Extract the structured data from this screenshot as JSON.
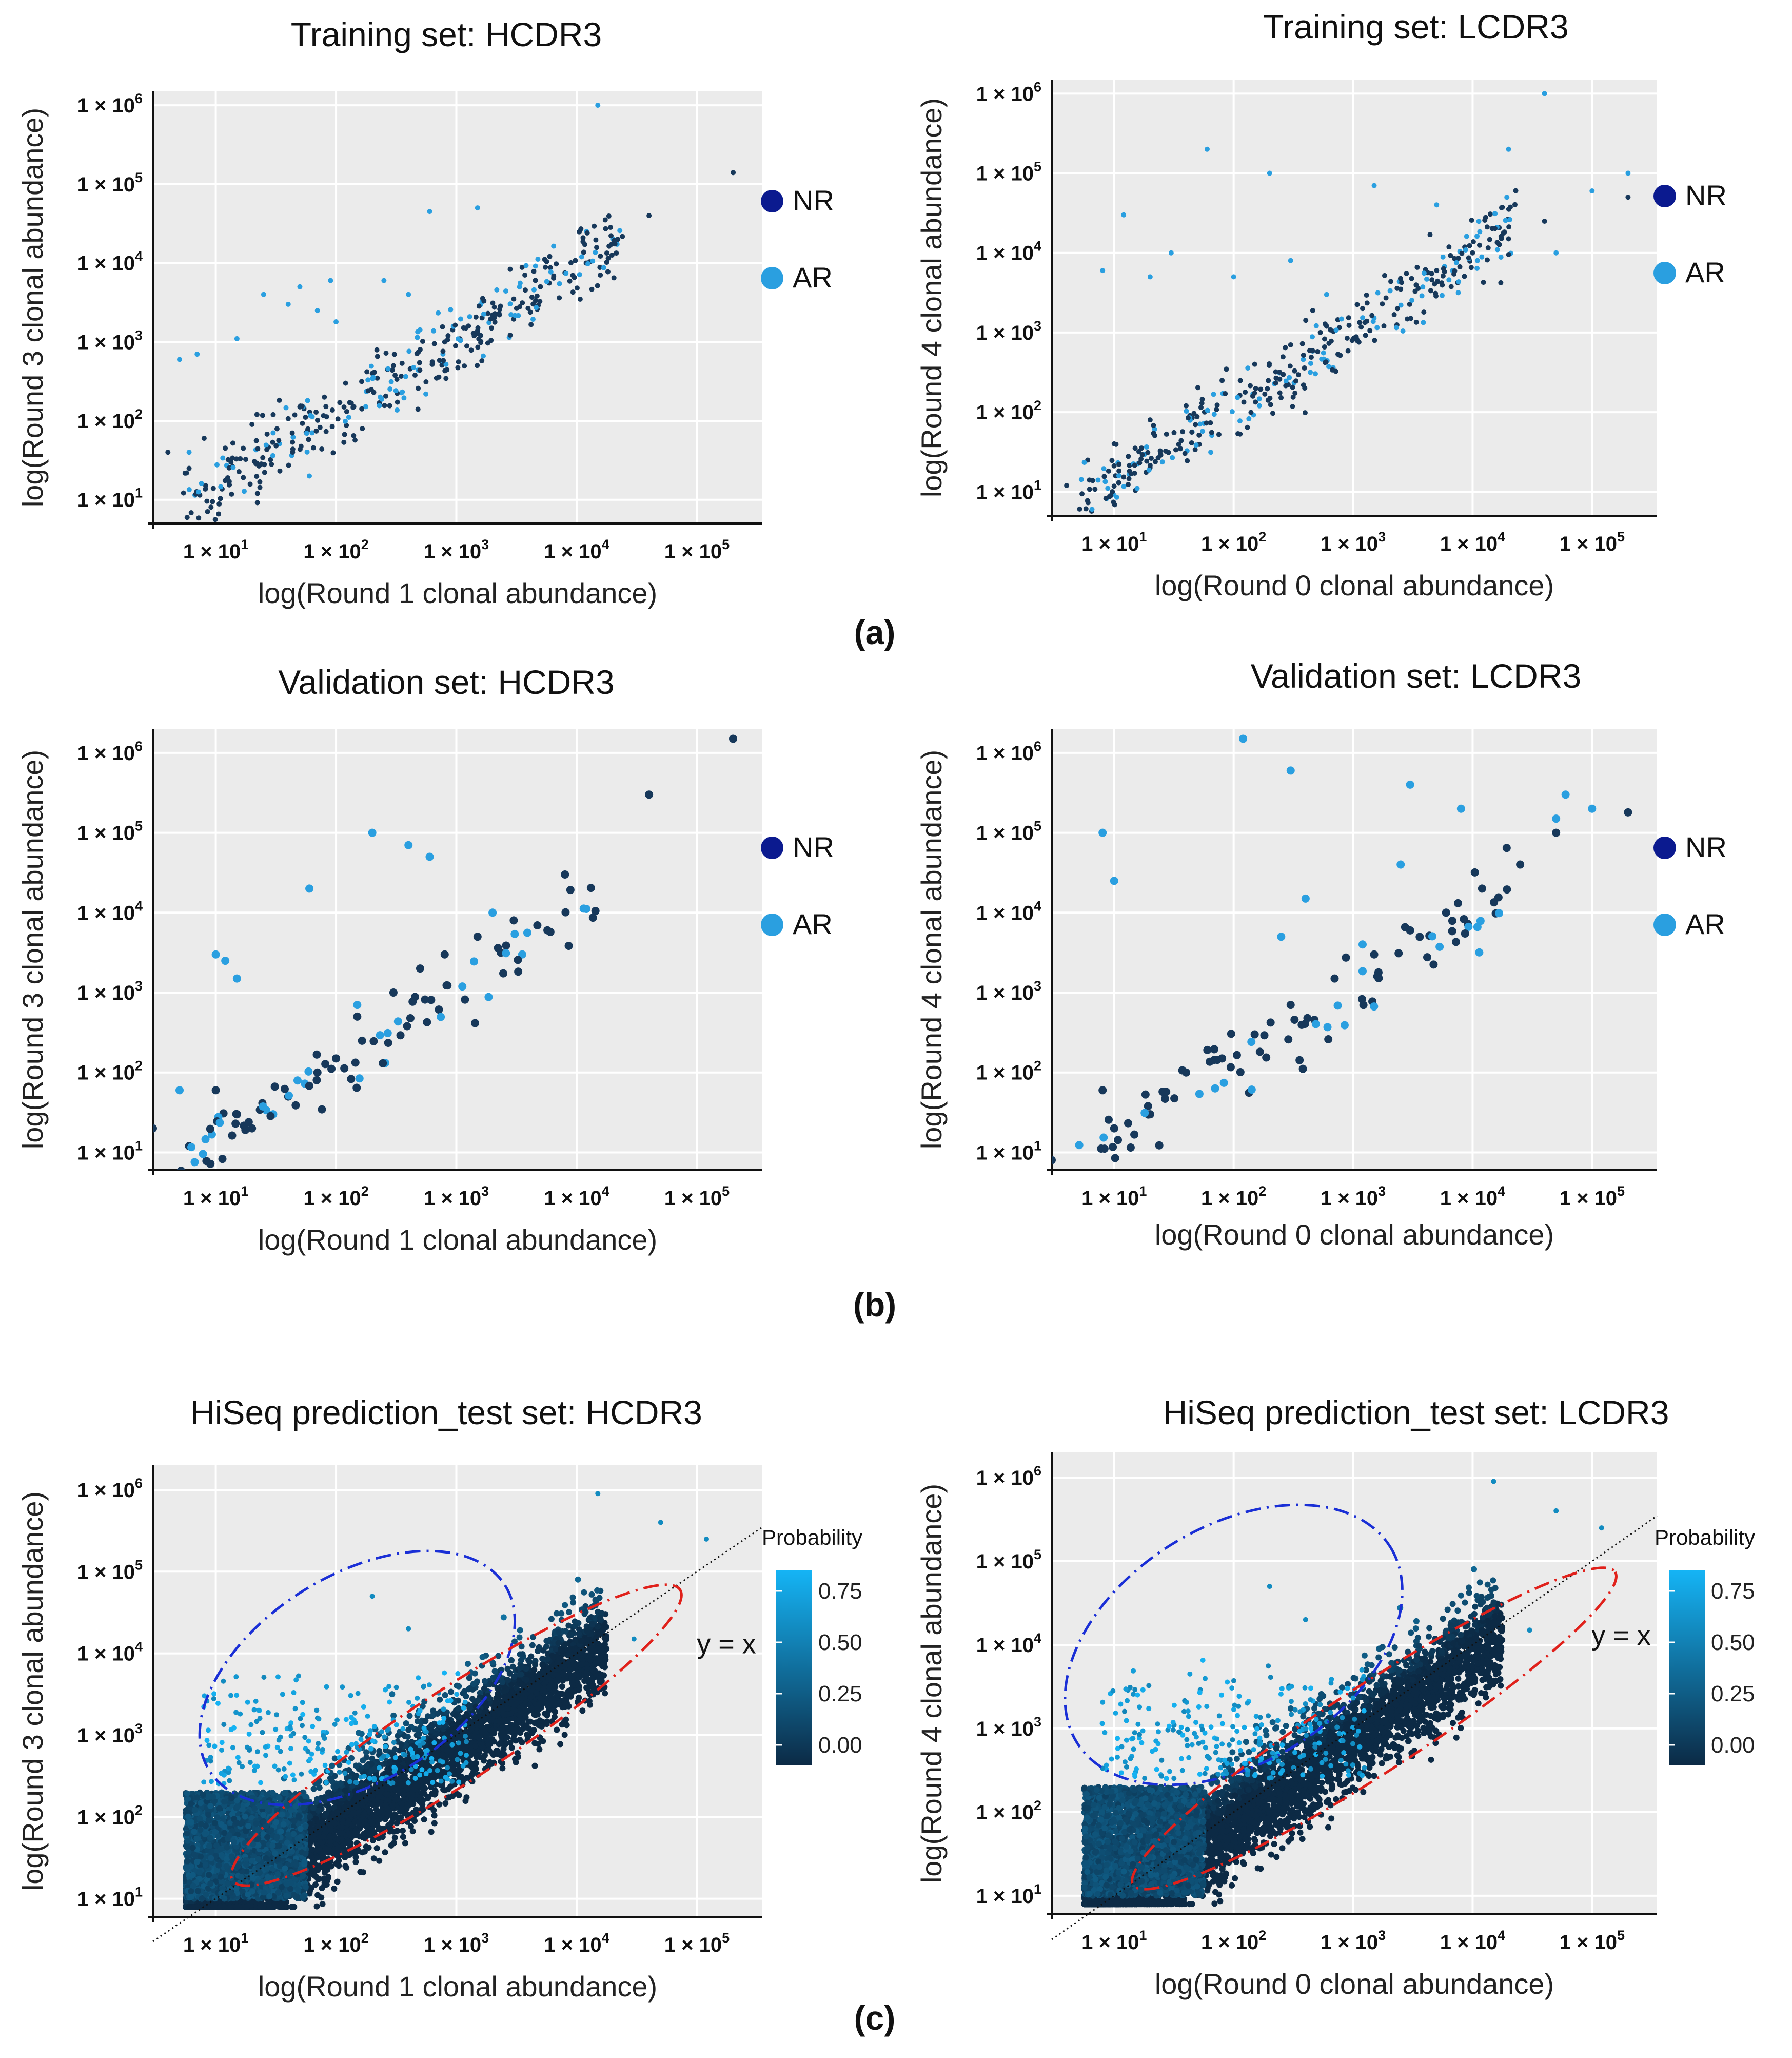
{
  "panel_labels": [
    "(a)",
    "(b)",
    "(c)"
  ],
  "legend_entries": [
    {
      "label": "NR",
      "color": "#0b1a8f"
    },
    {
      "label": "AR",
      "color": "#2a9fe0"
    }
  ],
  "colorbar": {
    "title": "Probability",
    "ticks": [
      "0.75",
      "0.50",
      "0.25",
      "0.00"
    ],
    "tick_values": [
      0.75,
      0.5,
      0.25,
      0.0
    ],
    "color_low": "#0c2a45",
    "color_high": "#15b4f5"
  },
  "identity_label": "y = x",
  "colors": {
    "panel_bg": "#ebebeb",
    "grid": "#ffffff",
    "nr_point": "#17385a",
    "ar_point": "#2a9fe0",
    "ellipse_blue": "#1a2fd6",
    "ellipse_red": "#e0211b"
  },
  "chart_data": [
    {
      "type": "scatter",
      "title": "Training set: HCDR3",
      "xlabel": "log(Round 1 clonal abundance)",
      "ylabel": "log(Round 3 clonal abundance)",
      "x_scale": "log10",
      "y_scale": "log10",
      "xlim": [
        3,
        350000
      ],
      "ylim": [
        5,
        1500000
      ],
      "x_ticks": [
        "1 × 10^1",
        "1 × 10^2",
        "1 × 10^3",
        "1 × 10^4",
        "1 × 10^5"
      ],
      "x_tick_values": [
        10,
        100,
        1000,
        10000,
        100000
      ],
      "y_ticks": [
        "1 × 10^1",
        "1 × 10^2",
        "1 × 10^3",
        "1 × 10^4",
        "1 × 10^5",
        "1 × 10^6"
      ],
      "y_tick_values": [
        10,
        100,
        1000,
        10000,
        100000,
        1000000
      ],
      "legend": "right",
      "grid": true,
      "series": [
        {
          "name": "NR",
          "trend": "along y = x",
          "points": [
            [
              4,
              40
            ],
            [
              6,
              25
            ],
            [
              8,
              60
            ],
            [
              12,
              45
            ],
            [
              20,
              90
            ],
            [
              30,
              120
            ],
            [
              50,
              150
            ],
            [
              80,
              200
            ],
            [
              120,
              300
            ],
            [
              200,
              400
            ],
            [
              300,
              500
            ],
            [
              500,
              800
            ],
            [
              800,
              1000
            ],
            [
              1200,
              1500
            ],
            [
              2000,
              2200
            ],
            [
              3000,
              3500
            ],
            [
              5000,
              5000
            ],
            [
              8000,
              7500
            ],
            [
              12000,
              10000
            ],
            [
              20000,
              20000
            ],
            [
              40000,
              40000
            ],
            [
              200000,
              140000
            ]
          ]
        },
        {
          "name": "AR",
          "trend": "mostly above diagonal",
          "points": [
            [
              5,
              600
            ],
            [
              7,
              700
            ],
            [
              15,
              1100
            ],
            [
              25,
              4000
            ],
            [
              40,
              3000
            ],
            [
              50,
              5000
            ],
            [
              70,
              2500
            ],
            [
              90,
              6000
            ],
            [
              100,
              1800
            ],
            [
              250,
              6000
            ],
            [
              400,
              4000
            ],
            [
              600,
              45000
            ],
            [
              1500,
              50000
            ],
            [
              6,
              40
            ],
            [
              60,
              20
            ],
            [
              15000,
              1000000
            ]
          ]
        }
      ]
    },
    {
      "type": "scatter",
      "title": "Training set: LCDR3",
      "xlabel": "log(Round 0 clonal abundance)",
      "ylabel": "log(Round 4 clonal abundance)",
      "x_scale": "log10",
      "y_scale": "log10",
      "xlim": [
        3,
        350000
      ],
      "ylim": [
        5,
        1500000
      ],
      "x_ticks": [
        "1 × 10^1",
        "1 × 10^2",
        "1 × 10^3",
        "1 × 10^4",
        "1 × 10^5"
      ],
      "x_tick_values": [
        10,
        100,
        1000,
        10000,
        100000
      ],
      "y_ticks": [
        "1 × 10^1",
        "1 × 10^2",
        "1 × 10^3",
        "1 × 10^4",
        "1 × 10^5",
        "1 × 10^6"
      ],
      "y_tick_values": [
        10,
        100,
        1000,
        10000,
        100000,
        1000000
      ],
      "legend": "right",
      "grid": true,
      "series": [
        {
          "name": "NR",
          "trend": "along y = x",
          "points": [
            [
              4,
              12
            ],
            [
              6,
              25
            ],
            [
              10,
              40
            ],
            [
              20,
              80
            ],
            [
              40,
              120
            ],
            [
              80,
              250
            ],
            [
              150,
              400
            ],
            [
              300,
              700
            ],
            [
              600,
              1200
            ],
            [
              1200,
              2000
            ],
            [
              2500,
              3500
            ],
            [
              5000,
              6000
            ],
            [
              10000,
              10000
            ],
            [
              20000,
              15000
            ],
            [
              40000,
              25000
            ],
            [
              200000,
              50000
            ]
          ]
        },
        {
          "name": "AR",
          "trend": "mostly above diagonal",
          "points": [
            [
              8,
              6000
            ],
            [
              12,
              30000
            ],
            [
              20,
              5000
            ],
            [
              30,
              10000
            ],
            [
              60,
              200000
            ],
            [
              100,
              5000
            ],
            [
              200,
              100000
            ],
            [
              300,
              8000
            ],
            [
              600,
              3000
            ],
            [
              1500,
              70000
            ],
            [
              5000,
              40000
            ],
            [
              20000,
              200000
            ],
            [
              40000,
              1000000
            ],
            [
              50000,
              10000
            ],
            [
              200000,
              100000
            ],
            [
              100000,
              60000
            ]
          ]
        }
      ]
    },
    {
      "type": "scatter",
      "title": "Validation set: HCDR3",
      "xlabel": "log(Round 1 clonal abundance)",
      "ylabel": "log(Round 3 clonal abundance)",
      "x_scale": "log10",
      "y_scale": "log10",
      "xlim": [
        3,
        350000
      ],
      "ylim": [
        6,
        2000000
      ],
      "x_ticks": [
        "1 × 10^1",
        "1 × 10^2",
        "1 × 10^3",
        "1 × 10^4",
        "1 × 10^5"
      ],
      "x_tick_values": [
        10,
        100,
        1000,
        10000,
        100000
      ],
      "y_ticks": [
        "1 × 10^1",
        "1 × 10^2",
        "1 × 10^3",
        "1 × 10^4",
        "1 × 10^5",
        "1 × 10^6"
      ],
      "y_tick_values": [
        10,
        100,
        1000,
        10000,
        100000,
        1000000
      ],
      "legend": "right",
      "grid": true,
      "series": [
        {
          "name": "NR",
          "trend": "along y = x",
          "points": [
            [
              3,
              20
            ],
            [
              6,
              12
            ],
            [
              10,
              60
            ],
            [
              15,
              30
            ],
            [
              20,
              20
            ],
            [
              40,
              50
            ],
            [
              70,
              100
            ],
            [
              100,
              150
            ],
            [
              150,
              500
            ],
            [
              300,
              1000
            ],
            [
              500,
              2000
            ],
            [
              800,
              3000
            ],
            [
              1500,
              5000
            ],
            [
              3000,
              8000
            ],
            [
              8000,
              30000
            ],
            [
              40000,
              300000
            ],
            [
              200000,
              1500000
            ]
          ]
        },
        {
          "name": "AR",
          "trend": "mostly above diagonal",
          "points": [
            [
              5,
              60
            ],
            [
              10,
              3000
            ],
            [
              15,
              1500
            ],
            [
              30,
              30
            ],
            [
              60,
              20000
            ],
            [
              200,
              100000
            ],
            [
              400,
              70000
            ],
            [
              600,
              50000
            ],
            [
              150,
              700
            ],
            [
              2000,
              10000
            ],
            [
              12,
              2500
            ]
          ]
        }
      ]
    },
    {
      "type": "scatter",
      "title": "Validation set: LCDR3",
      "xlabel": "log(Round 0 clonal abundance)",
      "ylabel": "log(Round 4 clonal abundance)",
      "x_scale": "log10",
      "y_scale": "log10",
      "xlim": [
        3,
        350000
      ],
      "ylim": [
        6,
        2000000
      ],
      "x_ticks": [
        "1 × 10^1",
        "1 × 10^2",
        "1 × 10^3",
        "1 × 10^4",
        "1 × 10^5"
      ],
      "x_tick_values": [
        10,
        100,
        1000,
        10000,
        100000
      ],
      "y_ticks": [
        "1 × 10^1",
        "1 × 10^2",
        "1 × 10^3",
        "1 × 10^4",
        "1 × 10^5",
        "1 × 10^6"
      ],
      "y_tick_values": [
        10,
        100,
        1000,
        10000,
        100000,
        1000000
      ],
      "legend": "right",
      "grid": true,
      "series": [
        {
          "name": "NR",
          "trend": "along y = x",
          "points": [
            [
              3,
              8
            ],
            [
              8,
              60
            ],
            [
              10,
              20
            ],
            [
              20,
              30
            ],
            [
              40,
              100
            ],
            [
              80,
              150
            ],
            [
              150,
              300
            ],
            [
              300,
              700
            ],
            [
              700,
              1500
            ],
            [
              1500,
              3000
            ],
            [
              3000,
              6000
            ],
            [
              6000,
              10000
            ],
            [
              12000,
              20000
            ],
            [
              25000,
              40000
            ],
            [
              50000,
              100000
            ],
            [
              200000,
              180000
            ]
          ]
        },
        {
          "name": "AR",
          "trend": "mostly above diagonal",
          "points": [
            [
              8,
              100000
            ],
            [
              10,
              25000
            ],
            [
              120,
              1500000
            ],
            [
              300,
              600000
            ],
            [
              250,
              5000
            ],
            [
              400,
              15000
            ],
            [
              1200,
              4000
            ],
            [
              3000,
              400000
            ],
            [
              8000,
              200000
            ],
            [
              2500,
              40000
            ],
            [
              60000,
              300000
            ],
            [
              100000,
              200000
            ],
            [
              50000,
              150000
            ]
          ]
        }
      ]
    },
    {
      "type": "scatter",
      "title": "HiSeq prediction_test set: HCDR3",
      "xlabel": "log(Round 1 clonal abundance)",
      "ylabel": "log(Round 3 clonal abundance)",
      "x_scale": "log10",
      "y_scale": "log10",
      "xlim": [
        3,
        350000
      ],
      "ylim": [
        6,
        2000000
      ],
      "x_ticks": [
        "1 × 10^1",
        "1 × 10^2",
        "1 × 10^3",
        "1 × 10^4",
        "1 × 10^5"
      ],
      "x_tick_values": [
        10,
        100,
        1000,
        10000,
        100000
      ],
      "y_ticks": [
        "1 × 10^1",
        "1 × 10^2",
        "1 × 10^3",
        "1 × 10^4",
        "1 × 10^5",
        "1 × 10^6"
      ],
      "y_tick_values": [
        10,
        100,
        1000,
        10000,
        100000,
        1000000
      ],
      "legend": "right",
      "grid": true,
      "color_variable": "Probability",
      "reference_line": "y = x",
      "description": "dense cloud of points colored by predicted probability; high-probability (light blue) points lie above the diagonal",
      "ellipses": [
        {
          "style": "dash-dot",
          "color": "blue",
          "center": [
            150,
            5000
          ],
          "note": "high-probability region above diagonal"
        },
        {
          "style": "dash-dot",
          "color": "red",
          "center": [
            1000,
            1000
          ],
          "note": "region along diagonal"
        }
      ]
    },
    {
      "type": "scatter",
      "title": "HiSeq prediction_test set: LCDR3",
      "xlabel": "log(Round 0 clonal abundance)",
      "ylabel": "log(Round 4 clonal abundance)",
      "x_scale": "log10",
      "y_scale": "log10",
      "xlim": [
        3,
        350000
      ],
      "ylim": [
        6,
        2000000
      ],
      "x_ticks": [
        "1 × 10^1",
        "1 × 10^2",
        "1 × 10^3",
        "1 × 10^4",
        "1 × 10^5"
      ],
      "x_tick_values": [
        10,
        100,
        1000,
        10000,
        100000
      ],
      "y_ticks": [
        "1 × 10^1",
        "1 × 10^2",
        "1 × 10^3",
        "1 × 10^4",
        "1 × 10^5",
        "1 × 10^6"
      ],
      "y_tick_values": [
        10,
        100,
        1000,
        10000,
        100000,
        1000000
      ],
      "legend": "right",
      "grid": true,
      "color_variable": "Probability",
      "reference_line": "y = x",
      "description": "dense cloud of points colored by predicted probability; high-probability (light blue) points lie above the diagonal",
      "ellipses": [
        {
          "style": "dash-dot",
          "color": "blue",
          "center": [
            100,
            10000
          ],
          "note": "high-probability region above diagonal"
        },
        {
          "style": "dash-dot",
          "color": "red",
          "center": [
            1500,
            1000
          ],
          "note": "region along diagonal"
        }
      ]
    }
  ]
}
